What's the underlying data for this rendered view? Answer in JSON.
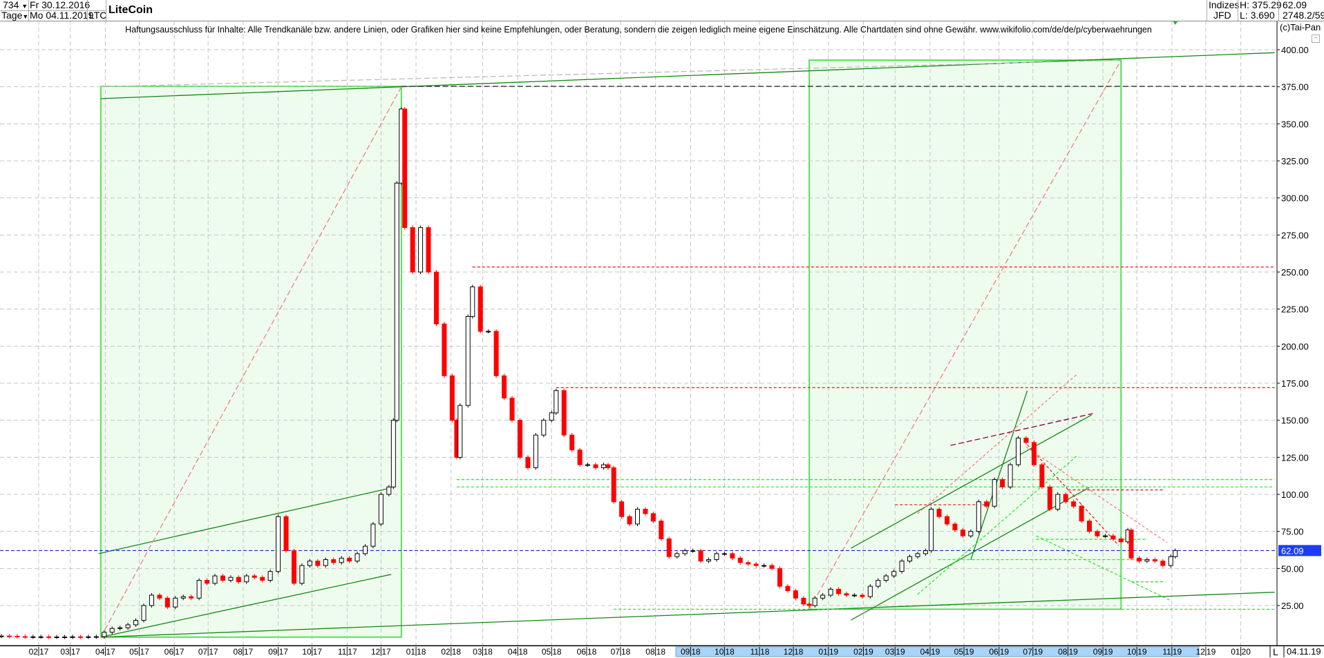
{
  "header": {
    "bars_count": "734",
    "period": "Tage",
    "start_date": "Fr 30.12.2016",
    "end_date": "Mo 04.11.2019",
    "symbol": "LTC",
    "title": "LiteCoin",
    "market": "Indizes",
    "exchange": "JFD",
    "high": "H: 375.29",
    "low": "L: 3.690",
    "last": "62.09",
    "extra": "2748.2/59",
    "copyright": "(c)Tai-Pan"
  },
  "disclaimer": "Haftungsausschluss für Inhalte: Alle Trendkanäle bzw. andere Linien, oder Grafiken hier sind keine Empfehlungen, oder Beratung, sondern die zeigen lediglich meine eigene Einschätzung. Alle Chartdaten sind ohne Gewähr.  www.wikifolio.com/de/de/p/cyberwaehrungen",
  "footer": {
    "scale_mode": "L",
    "current_date": "04.11.19"
  },
  "colors": {
    "up": "#000000",
    "down": "#ff0000",
    "box_fill": "#eefcee",
    "box_stroke": "#22dd22",
    "trend": "#118811",
    "last_price": "#0000cc",
    "axis_highlight": "#a8d4f8"
  },
  "chart_data": {
    "type": "candlestick",
    "title": "LiteCoin",
    "ylim": [
      0,
      400
    ],
    "y_ticks": [
      25,
      50,
      75,
      100,
      125,
      150,
      175,
      200,
      225,
      250,
      275,
      300,
      325,
      350,
      375,
      400
    ],
    "y_tick_labels": [
      "25.00",
      "50.00",
      "75.00",
      "100.00",
      "125.00",
      "150.00",
      "175.00",
      "200.00",
      "225.00",
      "250.00",
      "275.00",
      "300.00",
      "325.00",
      "350.00",
      "375.00",
      "400.00"
    ],
    "last_price": 62.09,
    "last_price_label": "62.09",
    "grid": true,
    "x_ticks": [
      {
        "date": "2017-02-01",
        "label": "02 17"
      },
      {
        "date": "2017-03-01",
        "label": "03 17"
      },
      {
        "date": "2017-04-01",
        "label": "04 17"
      },
      {
        "date": "2017-05-01",
        "label": "05 17"
      },
      {
        "date": "2017-06-01",
        "label": "06 17"
      },
      {
        "date": "2017-07-01",
        "label": "07 17"
      },
      {
        "date": "2017-08-01",
        "label": "08 17"
      },
      {
        "date": "2017-09-01",
        "label": "09 17"
      },
      {
        "date": "2017-10-01",
        "label": "10 17"
      },
      {
        "date": "2017-11-01",
        "label": "11 17"
      },
      {
        "date": "2017-12-01",
        "label": "12 17"
      },
      {
        "date": "2018-01-01",
        "label": "01 18"
      },
      {
        "date": "2018-02-01",
        "label": "02 18"
      },
      {
        "date": "2018-03-01",
        "label": "03 18"
      },
      {
        "date": "2018-04-01",
        "label": "04 18"
      },
      {
        "date": "2018-05-01",
        "label": "05 18"
      },
      {
        "date": "2018-06-01",
        "label": "06 18"
      },
      {
        "date": "2018-07-01",
        "label": "07 18"
      },
      {
        "date": "2018-08-01",
        "label": "08 18"
      },
      {
        "date": "2018-09-01",
        "label": "09 18"
      },
      {
        "date": "2018-10-01",
        "label": "10 18"
      },
      {
        "date": "2018-11-01",
        "label": "11 18"
      },
      {
        "date": "2018-12-01",
        "label": "12 18"
      },
      {
        "date": "2019-01-01",
        "label": "01 19"
      },
      {
        "date": "2019-02-01",
        "label": "02 19"
      },
      {
        "date": "2019-03-01",
        "label": "03 19"
      },
      {
        "date": "2019-04-01",
        "label": "04 19"
      },
      {
        "date": "2019-05-01",
        "label": "05 19"
      },
      {
        "date": "2019-06-01",
        "label": "06 19"
      },
      {
        "date": "2019-07-01",
        "label": "07 19"
      },
      {
        "date": "2019-08-01",
        "label": "08 19"
      },
      {
        "date": "2019-09-01",
        "label": "09 19"
      },
      {
        "date": "2019-10-01",
        "label": "10 19"
      },
      {
        "date": "2019-11-01",
        "label": "11 19"
      },
      {
        "date": "2019-12-01",
        "label": "12 19"
      },
      {
        "date": "2020-01-01",
        "label": "01 20"
      }
    ],
    "closes": [
      [
        "2016-12-30",
        4.4
      ],
      [
        "2017-01-06",
        4.3
      ],
      [
        "2017-01-13",
        4.0
      ],
      [
        "2017-01-20",
        3.9
      ],
      [
        "2017-01-27",
        3.9
      ],
      [
        "2017-02-03",
        3.9
      ],
      [
        "2017-02-10",
        3.8
      ],
      [
        "2017-02-17",
        3.8
      ],
      [
        "2017-02-24",
        3.8
      ],
      [
        "2017-03-03",
        3.9
      ],
      [
        "2017-03-10",
        3.8
      ],
      [
        "2017-03-17",
        3.9
      ],
      [
        "2017-03-24",
        4.0
      ],
      [
        "2017-03-31",
        7.0
      ],
      [
        "2017-04-07",
        9.5
      ],
      [
        "2017-04-14",
        10
      ],
      [
        "2017-04-21",
        12
      ],
      [
        "2017-04-28",
        15
      ],
      [
        "2017-05-05",
        25
      ],
      [
        "2017-05-12",
        32
      ],
      [
        "2017-05-19",
        30
      ],
      [
        "2017-05-26",
        24
      ],
      [
        "2017-06-02",
        30
      ],
      [
        "2017-06-09",
        31
      ],
      [
        "2017-06-16",
        30
      ],
      [
        "2017-06-23",
        42
      ],
      [
        "2017-06-30",
        40
      ],
      [
        "2017-07-07",
        45
      ],
      [
        "2017-07-14",
        42
      ],
      [
        "2017-07-21",
        44
      ],
      [
        "2017-07-28",
        41
      ],
      [
        "2017-08-04",
        45
      ],
      [
        "2017-08-11",
        44
      ],
      [
        "2017-08-18",
        42
      ],
      [
        "2017-08-25",
        48
      ],
      [
        "2017-09-01",
        85
      ],
      [
        "2017-09-08",
        62
      ],
      [
        "2017-09-15",
        40
      ],
      [
        "2017-09-22",
        52
      ],
      [
        "2017-09-29",
        55
      ],
      [
        "2017-10-06",
        52
      ],
      [
        "2017-10-13",
        56
      ],
      [
        "2017-10-20",
        54
      ],
      [
        "2017-10-27",
        57
      ],
      [
        "2017-11-03",
        55
      ],
      [
        "2017-11-10",
        60
      ],
      [
        "2017-11-17",
        65
      ],
      [
        "2017-11-24",
        80
      ],
      [
        "2017-12-01",
        100
      ],
      [
        "2017-12-08",
        105
      ],
      [
        "2017-12-12",
        150
      ],
      [
        "2017-12-15",
        310
      ],
      [
        "2017-12-19",
        360
      ],
      [
        "2017-12-22",
        280
      ],
      [
        "2017-12-29",
        250
      ],
      [
        "2018-01-05",
        280
      ],
      [
        "2018-01-12",
        250
      ],
      [
        "2018-01-19",
        215
      ],
      [
        "2018-01-26",
        180
      ],
      [
        "2018-02-02",
        150
      ],
      [
        "2018-02-06",
        125
      ],
      [
        "2018-02-09",
        160
      ],
      [
        "2018-02-16",
        220
      ],
      [
        "2018-02-20",
        240
      ],
      [
        "2018-02-27",
        210
      ],
      [
        "2018-03-06",
        210
      ],
      [
        "2018-03-13",
        180
      ],
      [
        "2018-03-20",
        165
      ],
      [
        "2018-03-27",
        150
      ],
      [
        "2018-04-03",
        125
      ],
      [
        "2018-04-10",
        118
      ],
      [
        "2018-04-17",
        140
      ],
      [
        "2018-04-24",
        150
      ],
      [
        "2018-05-01",
        155
      ],
      [
        "2018-05-05",
        170
      ],
      [
        "2018-05-12",
        140
      ],
      [
        "2018-05-19",
        130
      ],
      [
        "2018-05-26",
        120
      ],
      [
        "2018-06-02",
        120
      ],
      [
        "2018-06-09",
        118
      ],
      [
        "2018-06-16",
        120
      ],
      [
        "2018-06-20",
        118
      ],
      [
        "2018-06-25",
        95
      ],
      [
        "2018-07-02",
        85
      ],
      [
        "2018-07-09",
        80
      ],
      [
        "2018-07-16",
        90
      ],
      [
        "2018-07-23",
        87
      ],
      [
        "2018-07-30",
        82
      ],
      [
        "2018-08-06",
        70
      ],
      [
        "2018-08-13",
        58
      ],
      [
        "2018-08-20",
        60
      ],
      [
        "2018-08-27",
        62
      ],
      [
        "2018-09-03",
        62
      ],
      [
        "2018-09-10",
        55
      ],
      [
        "2018-09-17",
        56
      ],
      [
        "2018-09-24",
        60
      ],
      [
        "2018-10-01",
        60
      ],
      [
        "2018-10-08",
        57
      ],
      [
        "2018-10-15",
        54
      ],
      [
        "2018-10-22",
        53
      ],
      [
        "2018-10-29",
        52
      ],
      [
        "2018-11-05",
        52
      ],
      [
        "2018-11-12",
        50
      ],
      [
        "2018-11-19",
        38
      ],
      [
        "2018-11-26",
        35
      ],
      [
        "2018-12-03",
        30
      ],
      [
        "2018-12-10",
        26
      ],
      [
        "2018-12-15",
        25
      ],
      [
        "2018-12-20",
        30
      ],
      [
        "2018-12-27",
        32
      ],
      [
        "2019-01-03",
        36
      ],
      [
        "2019-01-10",
        33
      ],
      [
        "2019-01-17",
        32
      ],
      [
        "2019-01-24",
        32
      ],
      [
        "2019-01-31",
        31
      ],
      [
        "2019-02-07",
        38
      ],
      [
        "2019-02-14",
        42
      ],
      [
        "2019-02-21",
        45
      ],
      [
        "2019-02-28",
        48
      ],
      [
        "2019-03-07",
        55
      ],
      [
        "2019-03-14",
        58
      ],
      [
        "2019-03-21",
        60
      ],
      [
        "2019-03-28",
        62
      ],
      [
        "2019-04-02",
        90
      ],
      [
        "2019-04-09",
        85
      ],
      [
        "2019-04-16",
        80
      ],
      [
        "2019-04-23",
        76
      ],
      [
        "2019-04-30",
        72
      ],
      [
        "2019-05-07",
        75
      ],
      [
        "2019-05-14",
        95
      ],
      [
        "2019-05-21",
        92
      ],
      [
        "2019-05-28",
        110
      ],
      [
        "2019-06-04",
        105
      ],
      [
        "2019-06-11",
        120
      ],
      [
        "2019-06-18",
        138
      ],
      [
        "2019-06-25",
        135
      ],
      [
        "2019-07-02",
        120
      ],
      [
        "2019-07-09",
        105
      ],
      [
        "2019-07-16",
        90
      ],
      [
        "2019-07-23",
        100
      ],
      [
        "2019-07-30",
        95
      ],
      [
        "2019-08-06",
        92
      ],
      [
        "2019-08-13",
        82
      ],
      [
        "2019-08-20",
        75
      ],
      [
        "2019-08-27",
        72
      ],
      [
        "2019-09-03",
        72
      ],
      [
        "2019-09-10",
        70
      ],
      [
        "2019-09-17",
        68
      ],
      [
        "2019-09-23",
        76
      ],
      [
        "2019-09-26",
        57
      ],
      [
        "2019-10-03",
        55
      ],
      [
        "2019-10-10",
        56
      ],
      [
        "2019-10-17",
        55
      ],
      [
        "2019-10-24",
        52
      ],
      [
        "2019-10-31",
        58
      ],
      [
        "2019-11-04",
        62.09
      ]
    ],
    "boxes": [
      {
        "from": "2017-03-28",
        "to": "2017-12-19",
        "low": 3.69,
        "high": 375.29
      },
      {
        "from": "2018-12-15",
        "to": "2019-09-17",
        "low": 22.5,
        "high": 393
      }
    ],
    "trendlines": [
      {
        "style": "solid",
        "color": "#118811",
        "from": [
          "2017-03-28",
          3.7
        ],
        "to": [
          "2020-01-31",
          34
        ]
      },
      {
        "style": "solid",
        "color": "#118811",
        "from": [
          "2017-12-19",
          375
        ],
        "to": [
          "2020-01-31",
          398
        ]
      },
      {
        "style": "solid",
        "color": "#118811",
        "from": [
          "2017-03-28",
          367
        ],
        "to": [
          "2017-12-19",
          375
        ]
      },
      {
        "style": "solid",
        "color": "#118811",
        "from": [
          "2017-03-26",
          60
        ],
        "to": [
          "2017-12-08",
          104
        ]
      },
      {
        "style": "solid",
        "color": "#118811",
        "from": [
          "2017-03-28",
          3.7
        ],
        "to": [
          "2017-12-10",
          46
        ]
      },
      {
        "style": "dash",
        "color": "#f08080",
        "from": [
          "2017-03-28",
          3.7
        ],
        "to": [
          "2017-12-19",
          375
        ]
      },
      {
        "style": "dash",
        "color": "#f08080",
        "from": [
          "2018-12-15",
          22.5
        ],
        "to": [
          "2019-09-17",
          393
        ]
      },
      {
        "style": "dash",
        "color": "#bbbbbb",
        "from": [
          "2017-03-28",
          375
        ],
        "to": [
          "2019-09-17",
          393
        ]
      },
      {
        "style": "dot",
        "color": "#ff2020",
        "from": [
          "2018-02-20",
          253.4
        ],
        "to": [
          "2020-01-31",
          253.4
        ]
      },
      {
        "style": "dot",
        "color": "#ff2020",
        "from": [
          "2018-05-05",
          172
        ],
        "to": [
          "2020-01-31",
          172
        ]
      },
      {
        "style": "dash",
        "color": "#333333",
        "from": [
          "2017-12-19",
          375.29
        ],
        "to": [
          "2020-01-31",
          375.29
        ]
      },
      {
        "style": "dot",
        "color": "#22ee22",
        "from": [
          "2018-02-06",
          110
        ],
        "to": [
          "2020-01-31",
          110
        ]
      },
      {
        "style": "dot",
        "color": "#22ee22",
        "from": [
          "2018-02-06",
          105
        ],
        "to": [
          "2020-01-31",
          105
        ]
      },
      {
        "style": "dot",
        "color": "#22ee22",
        "from": [
          "2018-06-25",
          22.5
        ],
        "to": [
          "2020-01-31",
          22.5
        ]
      },
      {
        "style": "solid",
        "color": "#118811",
        "from": [
          "2019-01-21",
          63.7
        ],
        "to": [
          "2019-08-22",
          153.6
        ]
      },
      {
        "style": "solid",
        "color": "#118811",
        "from": [
          "2019-01-21",
          15.2
        ],
        "to": [
          "2019-08-20",
          104.7
        ]
      },
      {
        "style": "solid",
        "color": "#118811",
        "from": [
          "2019-05-07",
          55.8
        ],
        "to": [
          "2019-06-26",
          169.9
        ]
      },
      {
        "style": "dash",
        "color": "#880044",
        "from": [
          "2019-04-19",
          133
        ],
        "to": [
          "2019-08-23",
          154.5
        ]
      },
      {
        "style": "dot",
        "color": "#f08080",
        "from": [
          "2019-06-25",
          132
        ],
        "to": [
          "2019-10-28",
          67.4
        ]
      },
      {
        "style": "dot",
        "color": "#dd2222",
        "from": [
          "2019-06-26",
          133.5
        ],
        "to": [
          "2019-09-15",
          65.5
        ]
      },
      {
        "style": "dot",
        "color": "#22ee22",
        "from": [
          "2019-03-21",
          32.5
        ],
        "to": [
          "2019-08-09",
          126
        ]
      },
      {
        "style": "dot",
        "color": "#22ee22",
        "from": [
          "2019-07-04",
          72
        ],
        "to": [
          "2019-10-31",
          28.3
        ]
      },
      {
        "style": "dot",
        "color": "#22ee22",
        "from": [
          "2019-07-04",
          69.7
        ],
        "to": [
          "2019-10-10",
          69.7
        ]
      },
      {
        "style": "dot",
        "color": "#22ee22",
        "from": [
          "2019-04-08",
          56
        ],
        "to": [
          "2019-10-10",
          56
        ]
      },
      {
        "style": "dot",
        "color": "#22ee22",
        "from": [
          "2019-09-26",
          41
        ],
        "to": [
          "2019-10-25",
          41
        ]
      },
      {
        "style": "dot",
        "color": "#f08080",
        "from": [
          "2019-03-21",
          87
        ],
        "to": [
          "2019-08-09",
          181
        ]
      },
      {
        "style": "dot",
        "color": "#dd2222",
        "from": [
          "2019-03-01",
          93
        ],
        "to": [
          "2019-05-20",
          93
        ]
      },
      {
        "style": "dot",
        "color": "#dd2222",
        "from": [
          "2019-08-01",
          103
        ],
        "to": [
          "2019-10-25",
          103
        ]
      }
    ]
  }
}
